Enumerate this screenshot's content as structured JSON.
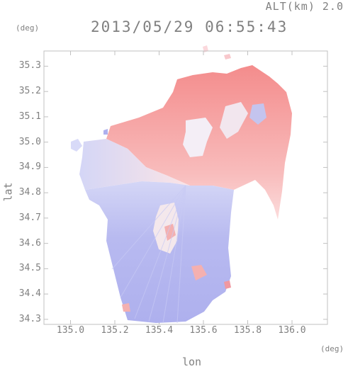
{
  "header": {
    "altitude_label": "ALT(km) 2.0",
    "timestamp": "2013/05/29 06:55:43"
  },
  "axes": {
    "y_unit": "(deg)",
    "x_unit": "(deg)",
    "y_title": "lat",
    "x_title": "lon",
    "y_ticks": [
      "35.3",
      "35.2",
      "35.1",
      "35.0",
      "34.9",
      "34.8",
      "34.7",
      "34.6",
      "34.5",
      "34.4",
      "34.3"
    ],
    "x_ticks": [
      "135.0",
      "135.2",
      "135.4",
      "135.6",
      "135.8",
      "136.0"
    ]
  },
  "map_data": {
    "type": "radar_doppler_velocity",
    "lon_range": [
      134.88,
      136.16
    ],
    "lat_range": [
      34.28,
      35.36
    ],
    "radar_center": {
      "lon": 135.52,
      "lat": 34.81
    },
    "colors": {
      "approaching": "#b0b4f0",
      "receding": "#f4a4a4",
      "neutral": "#f4f0f8",
      "frame": "#c0c0c0"
    }
  }
}
